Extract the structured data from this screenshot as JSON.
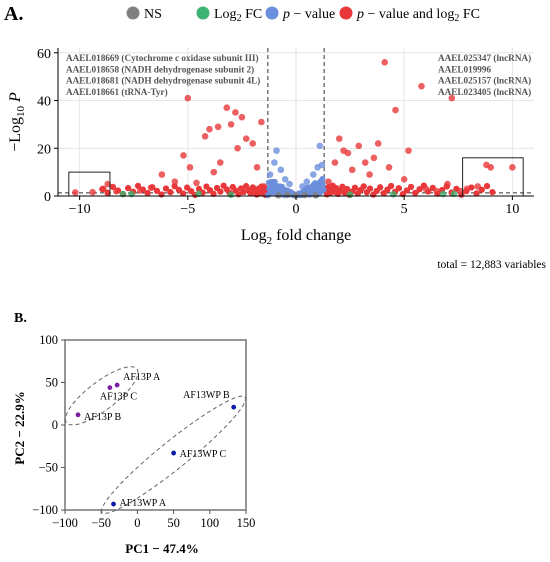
{
  "panel_a_label": "A.",
  "panel_b_label": "B.",
  "legend": [
    {
      "label": "NS",
      "color": "#808080"
    },
    {
      "label": "Log2 FC",
      "color": "#3cb371"
    },
    {
      "label": "p − value",
      "color": "#6b8fdc"
    },
    {
      "label": "p − value and log2 FC",
      "color": "#e8383b"
    }
  ],
  "volcano": {
    "xlabel": "Log2 fold change",
    "ylabel": "−Log10 P",
    "caption": "total = 12,883 variables",
    "xlim": [
      -11,
      11
    ],
    "ylim": [
      0,
      62
    ],
    "xticks": [
      -10,
      -5,
      0,
      5,
      10
    ],
    "yticks": [
      0,
      20,
      40,
      60
    ],
    "fc_cutoffs": [
      -1.3,
      1.3
    ],
    "p_cutoff": 1.3,
    "left_annotations": [
      "AAEL018669 (Cytochrome c oxidase subunit III)",
      "AAEL018658 (NADH dehydrogenase subunit 2)",
      "AAEL018681 (NADH dehydrogenase subunit 4L)",
      "AAEL018661 (tRNA-Tyr)"
    ],
    "right_annotations": [
      "AAEL025347 (lncRNA)",
      "AAEL019996",
      "AAEL025157 (lncRNA)",
      "AAEL023405 (lncRNA)"
    ],
    "highlight_boxes": [
      {
        "x": [
          -10.5,
          -8.6
        ],
        "y": [
          0,
          10
        ]
      },
      {
        "x": [
          7.7,
          10.5
        ],
        "y": [
          0,
          16
        ]
      }
    ]
  },
  "chart_data": [
    {
      "type": "scatter",
      "title": "",
      "xlabel": "Log2 fold change",
      "ylabel": "−Log10 P",
      "xlim": [
        -11,
        11
      ],
      "ylim": [
        0,
        62
      ],
      "series": [
        {
          "name": "p − value and log2 FC",
          "color": "#e8383b",
          "points": [
            [
              -10.2,
              1.5
            ],
            [
              -9.4,
              1.6
            ],
            [
              -8.9,
              3
            ],
            [
              -8.7,
              5
            ],
            [
              -8.3,
              2
            ],
            [
              -7.2,
              2.3
            ],
            [
              -6.7,
              3.5
            ],
            [
              -6.2,
              9
            ],
            [
              -5.6,
              6
            ],
            [
              -5.2,
              17
            ],
            [
              -5.0,
              41
            ],
            [
              -4.9,
              12
            ],
            [
              -4.6,
              5.5
            ],
            [
              -4.2,
              25
            ],
            [
              -4.0,
              28
            ],
            [
              -3.8,
              10
            ],
            [
              -3.6,
              29
            ],
            [
              -3.5,
              14
            ],
            [
              -3.2,
              37
            ],
            [
              -3.0,
              30
            ],
            [
              -2.8,
              35
            ],
            [
              -2.7,
              20
            ],
            [
              -2.5,
              33
            ],
            [
              -2.3,
              24
            ],
            [
              -2.0,
              22
            ],
            [
              -1.8,
              12
            ],
            [
              -1.6,
              31
            ],
            [
              -1.5,
              4
            ],
            [
              1.5,
              6
            ],
            [
              1.8,
              14
            ],
            [
              2.0,
              24
            ],
            [
              2.2,
              19
            ],
            [
              2.4,
              18
            ],
            [
              2.6,
              11
            ],
            [
              2.9,
              21
            ],
            [
              3.2,
              14
            ],
            [
              3.4,
              9
            ],
            [
              3.6,
              16
            ],
            [
              3.8,
              22
            ],
            [
              4.1,
              56
            ],
            [
              4.3,
              12
            ],
            [
              4.6,
              36
            ],
            [
              5.0,
              7
            ],
            [
              5.2,
              19
            ],
            [
              5.8,
              46
            ],
            [
              6.0,
              3
            ],
            [
              6.5,
              2
            ],
            [
              7.0,
              5
            ],
            [
              7.2,
              41
            ],
            [
              7.6,
              2
            ],
            [
              7.9,
              3
            ],
            [
              8.4,
              4
            ],
            [
              8.8,
              13
            ],
            [
              9.0,
              12
            ],
            [
              10.0,
              12
            ]
          ]
        },
        {
          "name": "p − value",
          "color": "#6b8fdc",
          "points": [
            [
              -1.2,
              9
            ],
            [
              -1.0,
              14
            ],
            [
              -0.9,
              19
            ],
            [
              -0.7,
              11
            ],
            [
              -0.5,
              7
            ],
            [
              -0.3,
              5
            ],
            [
              0.3,
              4
            ],
            [
              0.5,
              6
            ],
            [
              0.8,
              9
            ],
            [
              1.0,
              12
            ],
            [
              1.1,
              21
            ],
            [
              1.2,
              13
            ]
          ]
        },
        {
          "name": "Log2 FC",
          "color": "#3cb371",
          "points": [
            [
              -8.0,
              0.8
            ],
            [
              -7.6,
              0.8
            ],
            [
              -4.5,
              0.9
            ],
            [
              -3.0,
              0.5
            ],
            [
              2.5,
              0.6
            ],
            [
              4.5,
              0.7
            ],
            [
              6.8,
              0.8
            ],
            [
              7.3,
              0.9
            ]
          ]
        },
        {
          "name": "NS",
          "color": "#808080",
          "points": [
            [
              -0.8,
              0.3
            ],
            [
              -0.4,
              0.5
            ],
            [
              0.0,
              0.2
            ],
            [
              0.4,
              0.4
            ],
            [
              0.9,
              0.3
            ]
          ]
        }
      ]
    },
    {
      "type": "scatter",
      "title": "",
      "xlabel": "PC1 − 47.4%",
      "ylabel": "PC2 − 22.9%",
      "xlim": [
        -100,
        150
      ],
      "ylim": [
        -100,
        100
      ],
      "xticks": [
        -100,
        -50,
        0,
        50,
        100,
        150
      ],
      "yticks": [
        -100,
        -50,
        0,
        50,
        100
      ],
      "series": [
        {
          "color": "#7b1fa2",
          "points": [
            {
              "label": "AF13P A",
              "x": -28,
              "y": 47
            },
            {
              "label": "AF13P C",
              "x": -38,
              "y": 44
            },
            {
              "label": "AF13P B",
              "x": -82,
              "y": 12
            }
          ]
        },
        {
          "color": "#0d1aa8",
          "points": [
            {
              "label": "AF13WP B",
              "x": 133,
              "y": 21
            },
            {
              "label": "AF13WP C",
              "x": 50,
              "y": -33
            },
            {
              "label": "AF13WP A",
              "x": -33,
              "y": -93
            }
          ]
        }
      ]
    }
  ]
}
